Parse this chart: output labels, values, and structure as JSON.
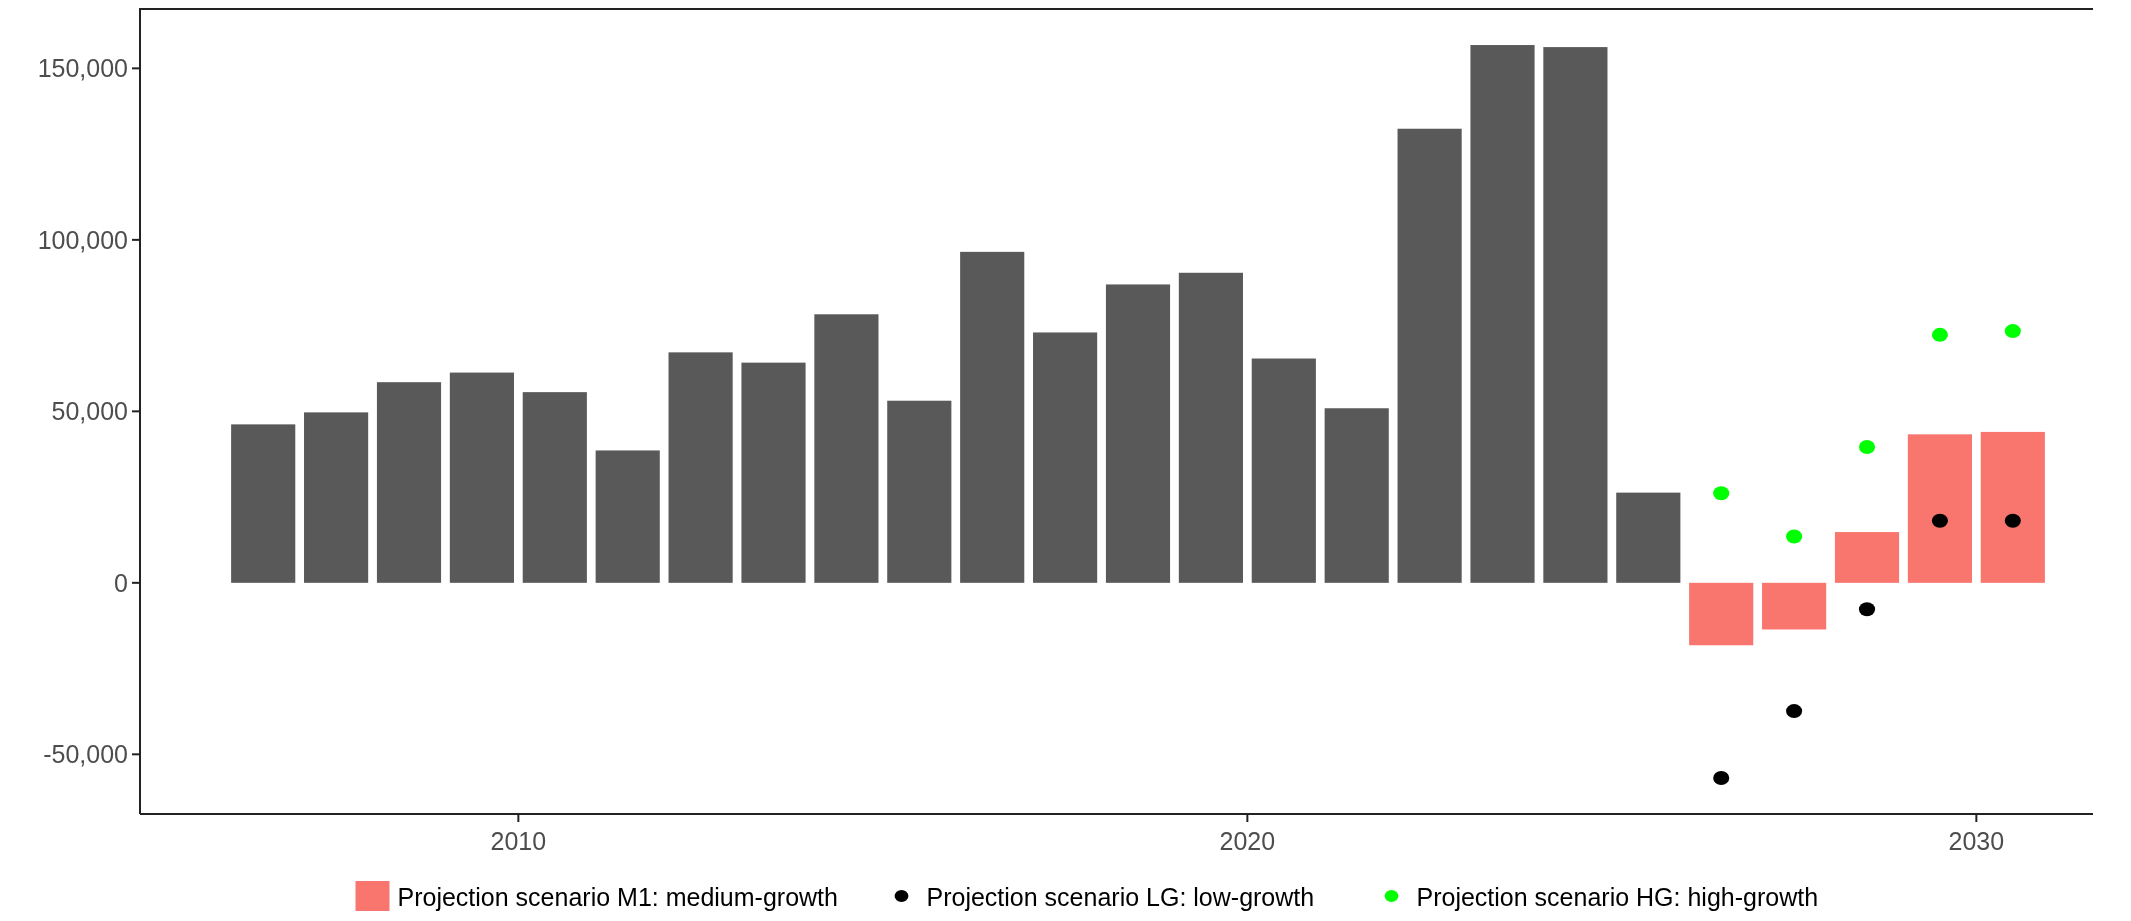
{
  "chart_data": {
    "type": "bar",
    "xlim": [
      2004.81,
      2031.6
    ],
    "xticks": [
      2010,
      2020,
      2030
    ],
    "ylim": [
      -67400,
      167600
    ],
    "yticks": [
      {
        "value": -50000,
        "label": "-50,000"
      },
      0,
      {
        "value": 50000,
        "label": "50,000"
      },
      {
        "value": 100000,
        "label": "100,000"
      },
      {
        "value": 150000,
        "label": "150,000"
      }
    ],
    "series": [
      {
        "color": "#595959",
        "x": [
          2006.5,
          2007.5,
          2008.5,
          2009.5,
          2010.5,
          2011.5,
          2012.5,
          2013.5,
          2014.5,
          2015.5,
          2016.5,
          2017.5,
          2018.5,
          2019.5,
          2020.5,
          2021.5,
          2022.5,
          2023.5,
          2024.5,
          2025.5
        ],
        "values": [
          46200,
          49700,
          58500,
          61300,
          55600,
          38600,
          67200,
          64200,
          78300,
          53100,
          96500,
          73000,
          87000,
          90400,
          65400,
          50900,
          132400,
          156800,
          156200,
          26300
        ]
      },
      {
        "type": "bar",
        "name": "Projection scenario M1: medium-growth",
        "color": "#f8766d",
        "x": [
          2026.5,
          2027.5,
          2028.5,
          2029.5,
          2030.5
        ],
        "values": [
          -18200,
          -13600,
          14800,
          43300,
          44000
        ]
      },
      {
        "type": "scatter",
        "name": "Projection scenario LG: low-growth",
        "color": "#000000",
        "x": [
          2026.5,
          2027.5,
          2028.5,
          2029.5,
          2030.5
        ],
        "values": [
          -56900,
          -37400,
          -7700,
          18100,
          18100
        ]
      },
      {
        "type": "scatter",
        "name": "Projection scenario HG: high-growth",
        "color": "#00ff00",
        "x": [
          2026.5,
          2027.5,
          2028.5,
          2029.5,
          2030.5
        ],
        "values": [
          26100,
          13500,
          39600,
          72300,
          73400
        ]
      }
    ],
    "marker": "circle",
    "grid": false,
    "legend": "bottom"
  }
}
